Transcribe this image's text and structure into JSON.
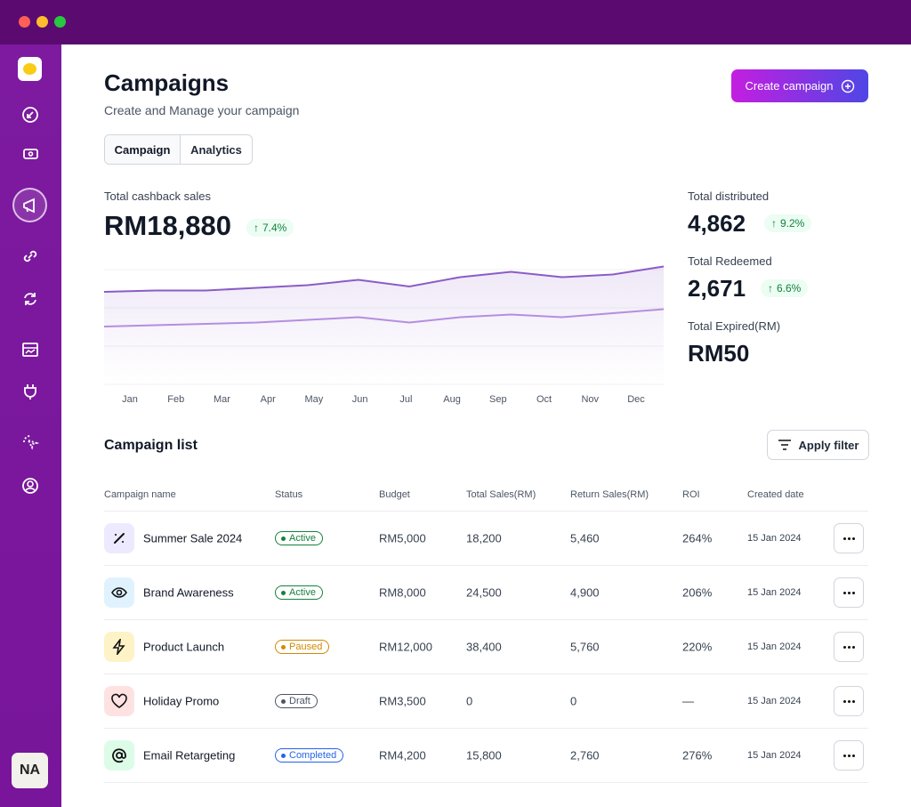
{
  "header": {
    "title": "Campaigns",
    "subtitle": "Create and Manage your campaign",
    "button": "Create campaign"
  },
  "tabs": [
    "Campaign",
    "Analytics"
  ],
  "stats": {
    "main": {
      "label": "Total cashback sales",
      "value": "RM18,880",
      "change": "7.4%"
    },
    "side": [
      {
        "label": "Total distributed",
        "value": "4,862",
        "change": "9.2%"
      },
      {
        "label": "Total Redeemed",
        "value": "2,671",
        "change": "6.6%"
      },
      {
        "label": "Total Expired(RM)",
        "value": "RM50"
      }
    ]
  },
  "chart": {
    "type": "line",
    "categories": [
      "Jan",
      "Feb",
      "Mar",
      "Apr",
      "May",
      "Jun",
      "Jul",
      "Aug",
      "Sep",
      "Oct",
      "Nov",
      "Dec"
    ],
    "ylim": [
      0,
      100
    ],
    "series": [
      {
        "color": "#8b5cc7",
        "values": [
          68,
          69,
          69,
          71,
          73,
          77,
          72,
          79,
          83,
          79,
          81,
          87
        ]
      },
      {
        "color": "#b58ee0",
        "values": [
          42,
          43,
          44,
          45,
          47,
          49,
          45,
          49,
          51,
          49,
          52,
          55
        ]
      }
    ]
  },
  "list": {
    "title": "Campaign list",
    "filter": "Apply filter",
    "columns": [
      "Campaign name",
      "Status",
      "Budget",
      "Total Sales(RM)",
      "Return Sales(RM)",
      "ROI",
      "Created date"
    ],
    "rows": [
      [
        "Summer Sale 2024",
        "Active",
        "RM5,000",
        "18,200",
        "5,460",
        "264%",
        "15 Jan 2024"
      ],
      [
        "Brand Awareness",
        "Active",
        "RM8,000",
        "24,500",
        "4,900",
        "206%",
        "15 Jan 2024"
      ],
      [
        "Product Launch",
        "Paused",
        "RM12,000",
        "38,400",
        "5,760",
        "220%",
        "15 Jan 2024"
      ],
      [
        "Holiday Promo",
        "Draft",
        "RM3,500",
        "0",
        "0",
        "—",
        "15 Jan 2024"
      ],
      [
        "Email Retargeting",
        "Completed",
        "RM4,200",
        "15,800",
        "2,760",
        "276%",
        "15 Jan 2024"
      ]
    ]
  },
  "user": {
    "initials": "NA"
  }
}
